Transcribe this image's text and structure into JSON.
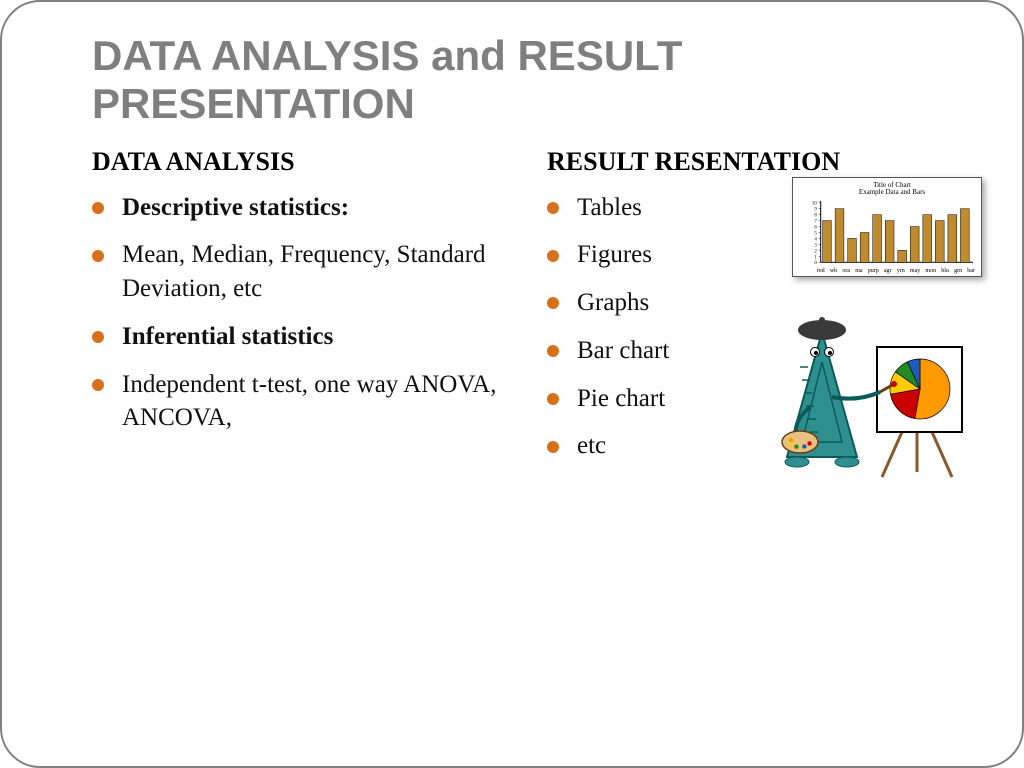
{
  "colors": {
    "bullet": "#d86f1a",
    "title": "#7f7f7f",
    "text": "#111111",
    "border": "#808080",
    "bg": "#ffffff"
  },
  "title": "DATA ANALYSIS and RESULT PRESENTATION",
  "left": {
    "heading": "DATA ANALYSIS",
    "items": [
      {
        "text": "Descriptive statistics:",
        "bold": true
      },
      {
        "text": "Mean, Median, Frequency, Standard Deviation, etc",
        "bold": false
      },
      {
        "text": "Inferential statistics",
        "bold": true
      },
      {
        "text": "Independent t-test, one way ANOVA, ANCOVA,",
        "bold": false
      }
    ]
  },
  "right": {
    "heading": "RESULT RESENTATION",
    "items": [
      {
        "text": "Tables",
        "bold": false
      },
      {
        "text": "Figures",
        "bold": false
      },
      {
        "text": "Graphs",
        "bold": false
      },
      {
        "text": "Bar chart",
        "bold": false
      },
      {
        "text": "Pie chart",
        "bold": false
      },
      {
        "text": "etc",
        "bold": false
      }
    ]
  },
  "barchart": {
    "type": "bar",
    "title_line1": "Title of Chart",
    "title_line2": "Example Data and Bars",
    "values": [
      7,
      9,
      4,
      5,
      8,
      7,
      2,
      6,
      8,
      7,
      8,
      9
    ],
    "xlabels": [
      "red",
      "wh",
      "ora",
      "ma",
      "purp",
      "agr",
      "yrn",
      "may",
      "mon",
      "blu",
      "grn",
      "bar"
    ],
    "ylim": [
      0,
      10
    ],
    "ytick_step": 1,
    "bar_color": "#c08a2e",
    "bar_edge": "#000000",
    "axis_color": "#000000",
    "bg": "#ffffff"
  },
  "painter": {
    "type": "infographic",
    "triangle_color": "#2f8f8f",
    "triangle_edge": "#0a5a5a",
    "beret_color": "#3a3a3a",
    "canvas_bg": "#ffffff",
    "canvas_border": "#000000",
    "easel_color": "#8b5a2b",
    "pie_slices": [
      {
        "color": "#ff9900",
        "start": 0,
        "end": 190
      },
      {
        "color": "#cc0000",
        "start": 190,
        "end": 260
      },
      {
        "color": "#ffcc00",
        "start": 260,
        "end": 305
      },
      {
        "color": "#228b22",
        "start": 305,
        "end": 335
      },
      {
        "color": "#1e5bb8",
        "start": 335,
        "end": 360
      }
    ],
    "palette_color": "#e8c080",
    "palette_dots": [
      "#cc0000",
      "#1e5bb8",
      "#228b22",
      "#ffcc00",
      "#ff9900"
    ]
  }
}
